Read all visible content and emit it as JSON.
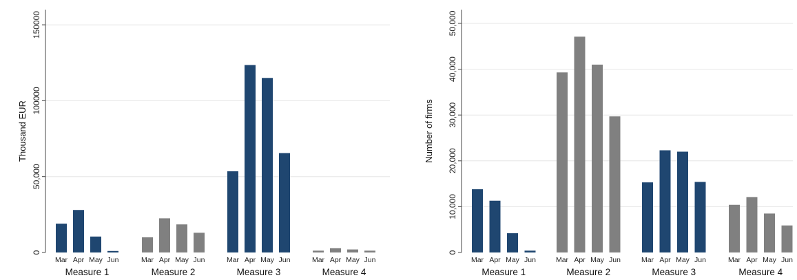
{
  "colors": {
    "navy": "#1f4670",
    "gray": "#808080",
    "grid": "#e6e6e6",
    "axis": "#444444"
  },
  "chart_data": [
    {
      "type": "bar",
      "ylabel": "Thousand EUR",
      "ylim": [
        0,
        160000
      ],
      "yticks": [
        0,
        50000,
        100000,
        150000
      ],
      "ytick_labels": [
        "0",
        "50,000",
        "100000",
        "150000"
      ],
      "grid": true,
      "groups": [
        {
          "label": "Measure 1",
          "color": "navy",
          "months": [
            "Mar",
            "Apr",
            "May",
            "Jun"
          ],
          "values": [
            19000,
            28000,
            10500,
            1000
          ]
        },
        {
          "label": "Measure 2",
          "color": "gray",
          "months": [
            "Mar",
            "Apr",
            "May",
            "Jun"
          ],
          "values": [
            10000,
            22500,
            18500,
            13000
          ]
        },
        {
          "label": "Measure 3",
          "color": "navy",
          "months": [
            "Mar",
            "Apr",
            "May",
            "Jun"
          ],
          "values": [
            53500,
            123500,
            115000,
            65500
          ]
        },
        {
          "label": "Measure 4",
          "color": "gray",
          "months": [
            "Mar",
            "Apr",
            "May",
            "Jun"
          ],
          "values": [
            1200,
            2800,
            2000,
            1200
          ]
        }
      ]
    },
    {
      "type": "bar",
      "ylabel": "Number of firms",
      "ylim": [
        0,
        53000
      ],
      "yticks": [
        0,
        10000,
        20000,
        30000,
        40000,
        50000
      ],
      "ytick_labels": [
        "0",
        "10,000",
        "20,000",
        "30,000",
        "40,000",
        "50,000"
      ],
      "grid": true,
      "groups": [
        {
          "label": "Measure 1",
          "color": "navy",
          "months": [
            "Mar",
            "Apr",
            "May",
            "Jun"
          ],
          "values": [
            13800,
            11300,
            4200,
            400
          ]
        },
        {
          "label": "Measure 2",
          "color": "gray",
          "months": [
            "Mar",
            "Apr",
            "May",
            "Jun"
          ],
          "values": [
            39300,
            47100,
            41000,
            29700
          ]
        },
        {
          "label": "Measure 3",
          "color": "navy",
          "months": [
            "Mar",
            "Apr",
            "May",
            "Jun"
          ],
          "values": [
            15300,
            22300,
            22000,
            15400
          ]
        },
        {
          "label": "Measure 4",
          "color": "gray",
          "months": [
            "Mar",
            "Apr",
            "May",
            "Jun"
          ],
          "values": [
            10400,
            12100,
            8500,
            5900
          ]
        }
      ]
    }
  ]
}
